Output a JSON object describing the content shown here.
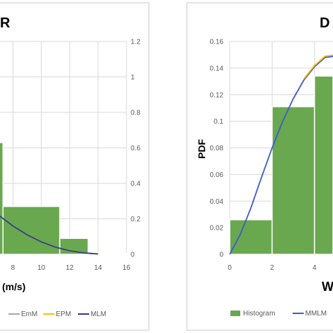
{
  "chart_data": [
    {
      "type": "bar",
      "title": "R",
      "xlabel": "(m/s)",
      "ylabel": "",
      "xlim": [
        6,
        16
      ],
      "ylim": [
        0,
        1.2
      ],
      "x_ticks": [
        "8",
        "10",
        "12",
        "14",
        "16"
      ],
      "y_ticks": [
        "0",
        "0.2",
        "0.4",
        "0.6",
        "0.8",
        "1",
        "1.2"
      ],
      "grid": true,
      "bars": [
        {
          "x0": 6,
          "x1": 7.3,
          "value": 0.63
        },
        {
          "x0": 7.3,
          "x1": 11.3,
          "value": 0.27
        },
        {
          "x0": 11.3,
          "x1": 13.3,
          "value": 0.09
        },
        {
          "x0": 13.3,
          "x1": 16,
          "value": 0.005
        }
      ],
      "series": [
        {
          "name": "EmM",
          "color": "#a6a6a6",
          "x": [
            6,
            7,
            8,
            9,
            10,
            11,
            12,
            13,
            14
          ],
          "y": [
            0.27,
            0.22,
            0.16,
            0.11,
            0.07,
            0.04,
            0.02,
            0.008,
            0.002
          ]
        },
        {
          "name": "EPM",
          "color": "#ffc000",
          "x": [
            6,
            7,
            8,
            9,
            10,
            11,
            12,
            13,
            14
          ],
          "y": [
            0.27,
            0.22,
            0.16,
            0.11,
            0.07,
            0.04,
            0.02,
            0.008,
            0.002
          ]
        },
        {
          "name": "MLM",
          "color": "#2f3c8f",
          "x": [
            6,
            7,
            8,
            9,
            10,
            11,
            12,
            13,
            14
          ],
          "y": [
            0.27,
            0.22,
            0.16,
            0.11,
            0.07,
            0.04,
            0.02,
            0.008,
            0.002
          ]
        }
      ],
      "legend": [
        "EmM",
        "EPM",
        "MLM"
      ],
      "legend_position": "bottom"
    },
    {
      "type": "bar",
      "title": "D",
      "xlabel": "W",
      "ylabel": "PDF",
      "xlim": [
        0,
        6
      ],
      "ylim": [
        0,
        0.16
      ],
      "x_ticks": [
        "0",
        "2",
        "4"
      ],
      "y_ticks": [
        "0",
        "0.02",
        "0.04",
        "0.06",
        "0.08",
        "0.1",
        "0.12",
        "0.14",
        "0.16"
      ],
      "grid": true,
      "bars": [
        {
          "x0": 0,
          "x1": 2,
          "value": 0.026
        },
        {
          "x0": 2,
          "x1": 4,
          "value": 0.111
        },
        {
          "x0": 4,
          "x1": 6,
          "value": 0.134
        }
      ],
      "series": [
        {
          "name": "MMLM",
          "color": "#3b5bd0",
          "x": [
            0,
            0.5,
            1,
            1.5,
            2,
            2.5,
            3,
            3.5,
            4,
            4.5,
            5,
            5.5
          ],
          "y": [
            0,
            0.015,
            0.035,
            0.058,
            0.08,
            0.1,
            0.117,
            0.131,
            0.141,
            0.148,
            0.149,
            0.146
          ]
        },
        {
          "name": "",
          "color": "#ffc000",
          "x": [
            3.5,
            4,
            4.5,
            5,
            5.5
          ],
          "y": [
            0.132,
            0.142,
            0.149,
            0.15,
            0.147
          ]
        }
      ],
      "legend": [
        "Histogram",
        "MMLM"
      ],
      "legend_position": "bottom"
    }
  ]
}
